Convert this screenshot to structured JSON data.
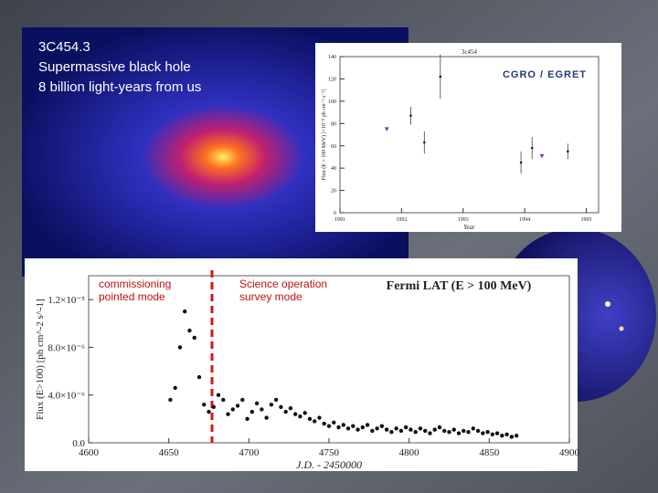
{
  "caption": [
    "3C454.3",
    "Supermassive black hole",
    "8 billion light-years from us"
  ],
  "chart_data": [
    {
      "type": "scatter",
      "title": "3c454",
      "label": "CGRO / EGRET",
      "x_label": "Year",
      "y_label": "Flux (E > 100 MeV) [×10⁻⁸ ph cm⁻² s⁻¹]",
      "xlim": [
        1991,
        1995.2
      ],
      "ylim": [
        0,
        140
      ],
      "xticks": [
        1991,
        1992,
        1993,
        1994,
        1995
      ],
      "yticks": [
        0,
        20,
        40,
        60,
        80,
        100,
        120,
        140
      ],
      "x": [
        1992.15,
        1992.37,
        1992.63,
        1993.94,
        1994.12,
        1994.7
      ],
      "values": [
        87,
        63,
        122,
        45,
        58,
        55
      ],
      "errors": [
        8,
        10,
        20,
        10,
        10,
        7
      ],
      "limits_x": [
        1991.76,
        1994.28
      ],
      "limits_values": [
        75,
        51
      ],
      "color": "#222",
      "limit_color": "#8a3aa0"
    },
    {
      "type": "scatter",
      "title": "Fermi LAT (E > 100 MeV)",
      "x_label": "J.D. - 2450000",
      "y_label": "Flux (E>100) [ph cm^-2 s^-1]",
      "annotations": [
        [
          "commissioning",
          "pointed mode"
        ],
        [
          "Science operation",
          "survey mode"
        ]
      ],
      "divider": 4677,
      "divider_color": "#d01818",
      "xlim": [
        4600,
        4900
      ],
      "ylim": [
        0,
        1.4e-05
      ],
      "xticks": [
        4600,
        4650,
        4700,
        4750,
        4800,
        4850,
        4900
      ],
      "yticks": [
        {
          "value": 0,
          "label": "0.0"
        },
        {
          "value": 4e-06,
          "label": "4.0×10⁻⁶"
        },
        {
          "value": 8e-06,
          "label": "8.0×10⁻⁶"
        },
        {
          "value": 1.2e-05,
          "label": "1.2×10⁻⁵"
        }
      ],
      "x": [
        4651,
        4654,
        4657,
        4660,
        4663,
        4666,
        4669,
        4672,
        4675,
        4678,
        4681,
        4684,
        4687,
        4690,
        4693,
        4696,
        4699,
        4702,
        4705,
        4708,
        4711,
        4714,
        4717,
        4720,
        4723,
        4726,
        4729,
        4732,
        4735,
        4738,
        4741,
        4744,
        4747,
        4750,
        4753,
        4756,
        4759,
        4762,
        4765,
        4768,
        4771,
        4774,
        4777,
        4780,
        4783,
        4786,
        4789,
        4792,
        4795,
        4798,
        4801,
        4804,
        4807,
        4810,
        4813,
        4816,
        4819,
        4822,
        4825,
        4828,
        4831,
        4834,
        4837,
        4840,
        4843,
        4846,
        4849,
        4852,
        4855,
        4858,
        4861,
        4864,
        4867
      ],
      "values": [
        3.6e-06,
        4.6e-06,
        8e-06,
        1.1e-05,
        9.4e-06,
        8.8e-06,
        5.5e-06,
        3.2e-06,
        2.6e-06,
        3e-06,
        4e-06,
        3.6e-06,
        2.4e-06,
        2.8e-06,
        3.1e-06,
        3.6e-06,
        2e-06,
        2.6e-06,
        3.3e-06,
        2.8e-06,
        2.1e-06,
        3.2e-06,
        3.6e-06,
        3e-06,
        2.6e-06,
        2.9e-06,
        2.4e-06,
        2.2e-06,
        2.5e-06,
        2e-06,
        1.8e-06,
        2.1e-06,
        1.6e-06,
        1.4e-06,
        1.7e-06,
        1.3e-06,
        1.5e-06,
        1.2e-06,
        1.4e-06,
        1.1e-06,
        1.3e-06,
        1.5e-06,
        1e-06,
        1.2e-06,
        1.4e-06,
        1.1e-06,
        9e-07,
        1.2e-06,
        1e-06,
        1.3e-06,
        1.1e-06,
        9e-07,
        1.2e-06,
        1e-06,
        8e-07,
        1.1e-06,
        1.3e-06,
        1e-06,
        9e-07,
        1.1e-06,
        8e-07,
        1e-06,
        9e-07,
        1.2e-06,
        1e-06,
        8e-07,
        9e-07,
        7e-07,
        8e-07,
        6e-07,
        7e-07,
        5e-07,
        6e-07
      ],
      "color": "#111"
    }
  ]
}
